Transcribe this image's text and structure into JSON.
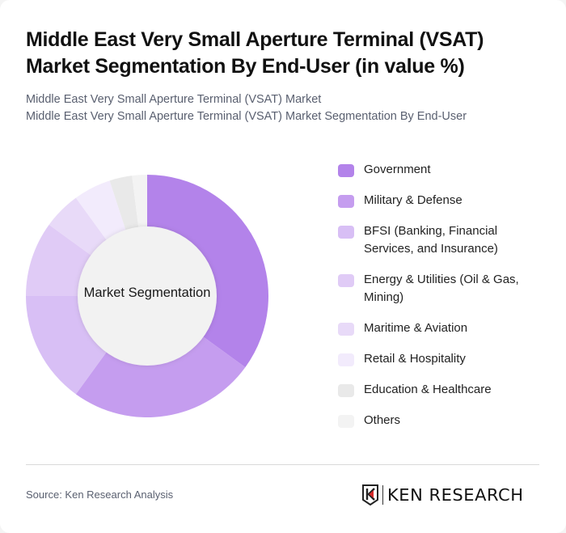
{
  "header": {
    "title_line1": "Middle East Very Small Aperture Terminal (VSAT)",
    "title_line2": "Market Segmentation By End-User (in value %)",
    "subtitle_line1": "Middle East Very Small Aperture Terminal (VSAT) Market",
    "subtitle_line2": "Middle East Very Small Aperture Terminal (VSAT) Market Segmentation By End-User"
  },
  "chart": {
    "center_label": "Market Segmentation"
  },
  "legend": {
    "items": [
      {
        "label": "Government",
        "color": "#b383ea"
      },
      {
        "label": "Military & Defense",
        "color": "#c59def"
      },
      {
        "label": "BFSI (Banking, Financial Services, and Insurance)",
        "color": "#d8bff5"
      },
      {
        "label": "Energy & Utilities (Oil & Gas, Mining)",
        "color": "#e0cbf6"
      },
      {
        "label": "Maritime & Aviation",
        "color": "#e8daf8"
      },
      {
        "label": "Retail & Hospitality",
        "color": "#f2ebfc"
      },
      {
        "label": "Education & Healthcare",
        "color": "#e9e9e9"
      },
      {
        "label": "Others",
        "color": "#f3f3f3"
      }
    ]
  },
  "footer": {
    "source": "Source: Ken Research Analysis",
    "logo_text": "KEN RESEARCH"
  },
  "chart_data": {
    "type": "pie",
    "title": "Middle East Very Small Aperture Terminal (VSAT) Market Segmentation By End-User (in value %)",
    "subtitle": "Middle East Very Small Aperture Terminal (VSAT) Market Segmentation By End-User",
    "center_label": "Market Segmentation",
    "donut": true,
    "categories": [
      "Government",
      "Military & Defense",
      "BFSI (Banking, Financial Services, and Insurance)",
      "Energy & Utilities (Oil & Gas, Mining)",
      "Maritime & Aviation",
      "Retail & Hospitality",
      "Education & Healthcare",
      "Others"
    ],
    "values": [
      35,
      25,
      15,
      10,
      5,
      5,
      3,
      2
    ],
    "colors": [
      "#b383ea",
      "#c59def",
      "#d8bff5",
      "#e0cbf6",
      "#e8daf8",
      "#f2ebfc",
      "#e9e9e9",
      "#f3f3f3"
    ],
    "unit": "%",
    "legend_position": "right",
    "source": "Source: Ken Research Analysis"
  }
}
